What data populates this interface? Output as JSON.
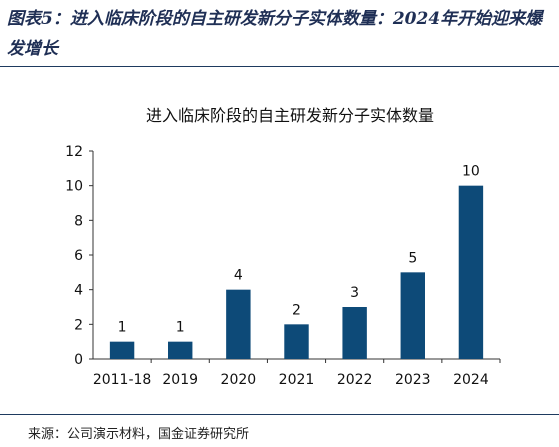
{
  "figure_title": "图表5：进入临床阶段的自主研发新分子实体数量：2024年开始迎来爆发增长",
  "source": "来源：公司演示材料，国金证券研究所",
  "chart_data": {
    "type": "bar",
    "title": "进入临床阶段的自主研发新分子实体数量",
    "xlabel": "",
    "ylabel": "",
    "categories": [
      "2011-18",
      "2019",
      "2020",
      "2021",
      "2022",
      "2023",
      "2024"
    ],
    "values": [
      1,
      1,
      4,
      2,
      3,
      5,
      10
    ],
    "yticks": [
      0,
      2,
      4,
      6,
      8,
      10,
      12
    ],
    "ylim": [
      0,
      12
    ],
    "grid": false,
    "legend": "none",
    "bar_color": "#0d4a78"
  }
}
